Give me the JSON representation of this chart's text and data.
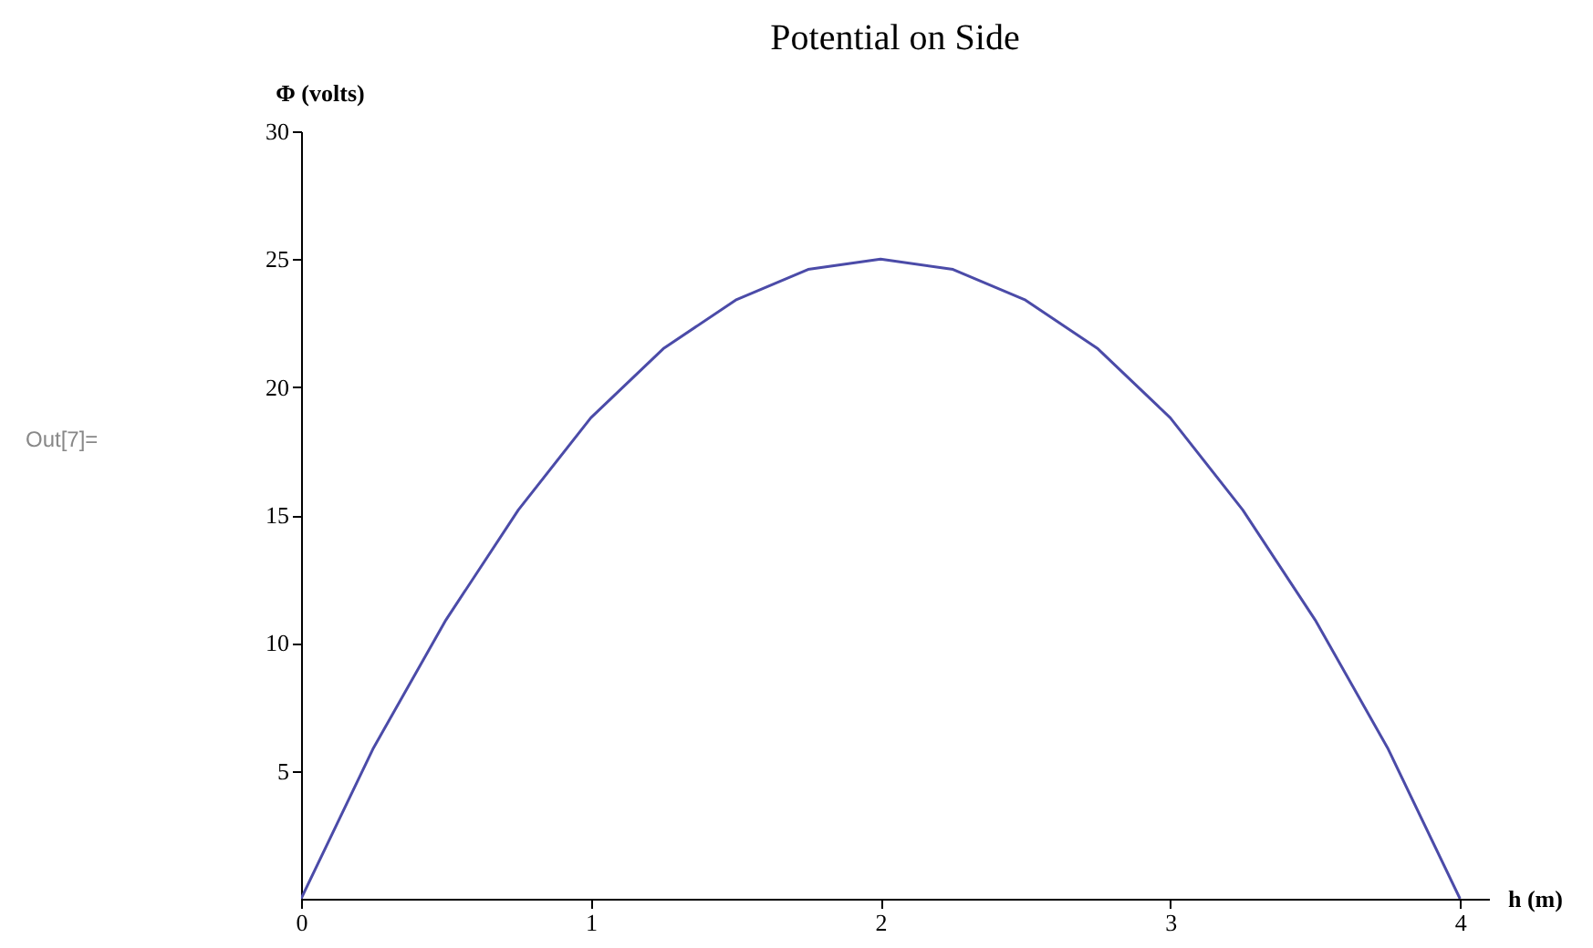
{
  "chart_data": {
    "type": "line",
    "title": "Potential on Side",
    "xlabel": "h (m)",
    "ylabel": "Φ (volts)",
    "annotations": [
      "Out[7]="
    ],
    "x": [
      0,
      0.25,
      0.5,
      0.75,
      1,
      1.25,
      1.5,
      1.75,
      2,
      2.25,
      2.5,
      2.75,
      3,
      3.25,
      3.5,
      3.75,
      4
    ],
    "series": [
      {
        "color": "#4b4ba8",
        "values": [
          0,
          5.9,
          10.9,
          15.2,
          18.8,
          21.5,
          23.4,
          24.6,
          25,
          24.6,
          23.4,
          21.5,
          18.8,
          15.2,
          10.9,
          5.9,
          0
        ]
      }
    ],
    "xlim": [
      0,
      4.1
    ],
    "xticks": [
      0,
      1,
      2,
      3,
      4
    ],
    "ylim": [
      0,
      30
    ],
    "yticks": [
      5,
      10,
      15,
      20,
      25,
      30
    ],
    "grid": false,
    "line_style": "solid",
    "marker": "none"
  }
}
